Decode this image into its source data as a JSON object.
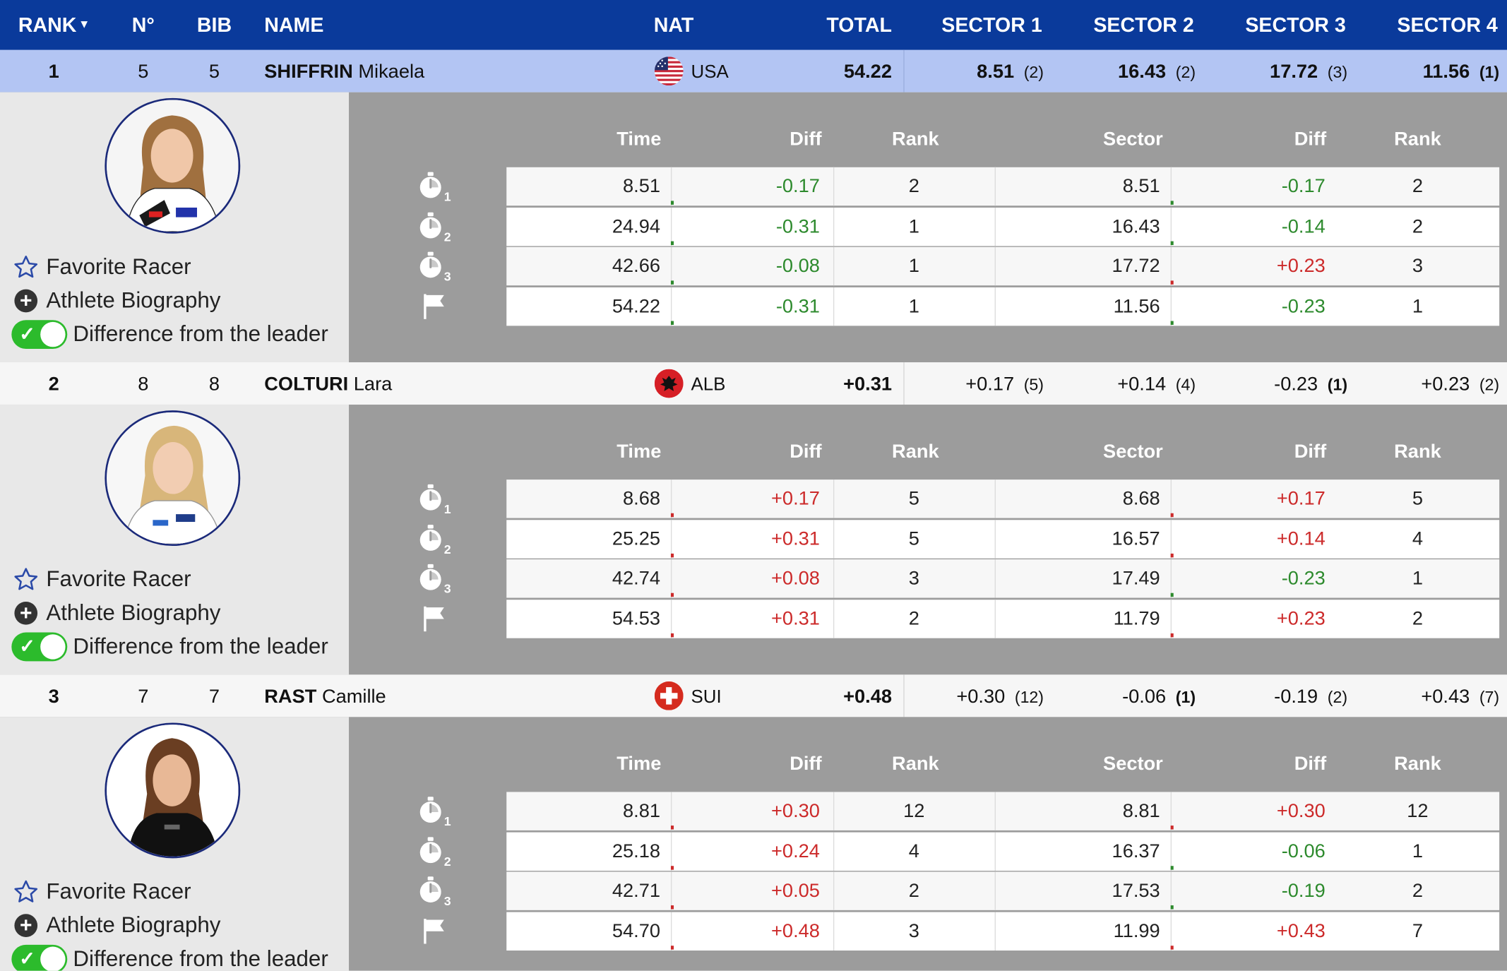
{
  "header": {
    "rank": "RANK",
    "no": "N°",
    "bib": "BIB",
    "name": "NAME",
    "nat": "NAT",
    "total": "TOTAL",
    "sectors": [
      "SECTOR 1",
      "SECTOR 2",
      "SECTOR 3",
      "SECTOR 4"
    ]
  },
  "detail_headers": [
    "Time",
    "Diff",
    "Rank",
    "Sector",
    "Diff",
    "Rank"
  ],
  "actions": {
    "favorite": "Favorite Racer",
    "biography": "Athlete Biography",
    "difference": "Difference from the leader"
  },
  "icons": {
    "timer": "stopwatch-icon",
    "finish": "finish-flag-icon",
    "favorite": "star-icon",
    "biography": "plus-circle-icon",
    "toggle": "toggle-on"
  },
  "colors": {
    "header_bg": "#0a3a9b",
    "highlight_row": "#b3c5f3",
    "negative": "#2d8a2d",
    "positive": "#cc2a2a",
    "toggle_on": "#2cbb2c",
    "detail_bg": "#9c9c9c"
  },
  "racers": [
    {
      "rank": "1",
      "no": "5",
      "bib": "5",
      "surname": "SHIFFRIN",
      "firstname": "Mikaela",
      "nat": "USA",
      "flag": "us-flag",
      "total": "54.22",
      "sectors": [
        {
          "value": "8.51",
          "pos": "(2)"
        },
        {
          "value": "16.43",
          "pos": "(2)"
        },
        {
          "value": "17.72",
          "pos": "(3)"
        },
        {
          "value": "11.56",
          "pos": "(1)"
        }
      ],
      "splits": [
        {
          "time": "8.51",
          "diff": "-0.17",
          "rank": "2",
          "sector": "8.51",
          "sdiff": "-0.17",
          "srank": "2"
        },
        {
          "time": "24.94",
          "diff": "-0.31",
          "rank": "1",
          "sector": "16.43",
          "sdiff": "-0.14",
          "srank": "2"
        },
        {
          "time": "42.66",
          "diff": "-0.08",
          "rank": "1",
          "sector": "17.72",
          "sdiff": "+0.23",
          "srank": "3"
        },
        {
          "time": "54.22",
          "diff": "-0.31",
          "rank": "1",
          "sector": "11.56",
          "sdiff": "-0.23",
          "srank": "1"
        }
      ]
    },
    {
      "rank": "2",
      "no": "8",
      "bib": "8",
      "surname": "COLTURI",
      "firstname": "Lara",
      "nat": "ALB",
      "flag": "al-flag",
      "total": "+0.31",
      "sectors": [
        {
          "value": "+0.17",
          "pos": "(5)"
        },
        {
          "value": "+0.14",
          "pos": "(4)"
        },
        {
          "value": "-0.23",
          "pos": "(1)"
        },
        {
          "value": "+0.23",
          "pos": "(2)"
        }
      ],
      "splits": [
        {
          "time": "8.68",
          "diff": "+0.17",
          "rank": "5",
          "sector": "8.68",
          "sdiff": "+0.17",
          "srank": "5"
        },
        {
          "time": "25.25",
          "diff": "+0.31",
          "rank": "5",
          "sector": "16.57",
          "sdiff": "+0.14",
          "srank": "4"
        },
        {
          "time": "42.74",
          "diff": "+0.08",
          "rank": "3",
          "sector": "17.49",
          "sdiff": "-0.23",
          "srank": "1"
        },
        {
          "time": "54.53",
          "diff": "+0.31",
          "rank": "2",
          "sector": "11.79",
          "sdiff": "+0.23",
          "srank": "2"
        }
      ]
    },
    {
      "rank": "3",
      "no": "7",
      "bib": "7",
      "surname": "RAST",
      "firstname": "Camille",
      "nat": "SUI",
      "flag": "ch-flag",
      "total": "+0.48",
      "sectors": [
        {
          "value": "+0.30",
          "pos": "(12)"
        },
        {
          "value": "-0.06",
          "pos": "(1)"
        },
        {
          "value": "-0.19",
          "pos": "(2)"
        },
        {
          "value": "+0.43",
          "pos": "(7)"
        }
      ],
      "splits": [
        {
          "time": "8.81",
          "diff": "+0.30",
          "rank": "12",
          "sector": "8.81",
          "sdiff": "+0.30",
          "srank": "12"
        },
        {
          "time": "25.18",
          "diff": "+0.24",
          "rank": "4",
          "sector": "16.37",
          "sdiff": "-0.06",
          "srank": "1"
        },
        {
          "time": "42.71",
          "diff": "+0.05",
          "rank": "2",
          "sector": "17.53",
          "sdiff": "-0.19",
          "srank": "2"
        },
        {
          "time": "54.70",
          "diff": "+0.48",
          "rank": "3",
          "sector": "11.99",
          "sdiff": "+0.43",
          "srank": "7"
        }
      ]
    }
  ]
}
